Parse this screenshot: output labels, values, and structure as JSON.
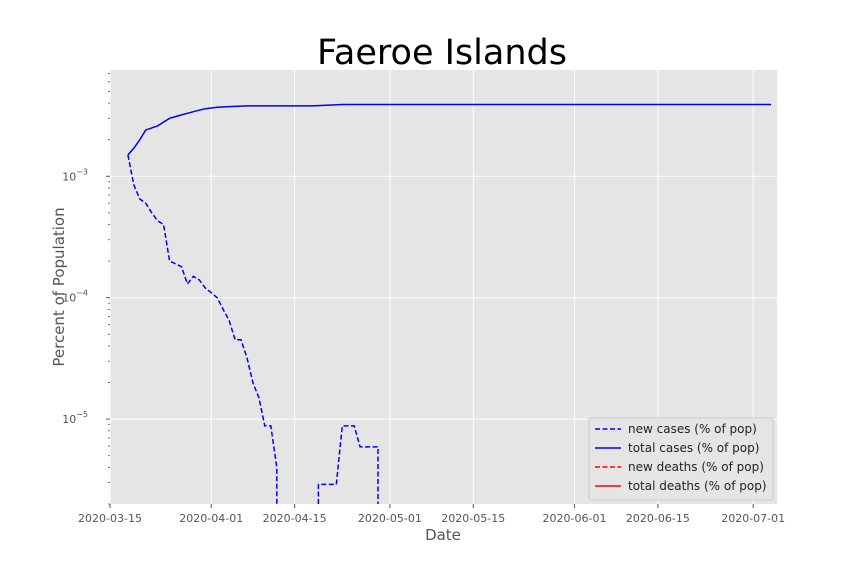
{
  "chart_data": {
    "type": "line",
    "title": "Faeroe Islands",
    "xlabel": "Date",
    "ylabel": "Percent of Population",
    "yscale": "log",
    "ylim": [
      2e-06,
      0.0075
    ],
    "xlim": [
      "2020-03-15",
      "2020-07-05"
    ],
    "grid": true,
    "legend_position": "lower-right",
    "x_ticks": [
      "2020-03-15",
      "2020-04-01",
      "2020-04-15",
      "2020-05-01",
      "2020-05-15",
      "2020-06-01",
      "2020-06-15",
      "2020-07-01"
    ],
    "y_ticks": [
      {
        "value": 0.001,
        "base": "10",
        "exp": "−3"
      },
      {
        "value": 0.0001,
        "base": "10",
        "exp": "−4"
      },
      {
        "value": 1e-05,
        "base": "10",
        "exp": "−5"
      }
    ],
    "colors": {
      "cases": "#0000ff",
      "deaths": "#ff0000",
      "background": "#e5e5e5",
      "grid": "#ffffff"
    },
    "series": [
      {
        "name": "new cases (% of pop)",
        "color": "#0000ff",
        "style": "dashed",
        "points": [
          [
            "2020-03-18",
            0.0015
          ],
          [
            "2020-03-19",
            0.00085
          ],
          [
            "2020-03-20",
            0.00065
          ],
          [
            "2020-03-21",
            0.0006
          ],
          [
            "2020-03-22",
            0.0005
          ],
          [
            "2020-03-23",
            0.00043
          ],
          [
            "2020-03-24",
            0.0004
          ],
          [
            "2020-03-25",
            0.0002
          ],
          [
            "2020-03-26",
            0.00019
          ],
          [
            "2020-03-27",
            0.00018
          ],
          [
            "2020-03-28",
            0.00013
          ],
          [
            "2020-03-29",
            0.00015
          ],
          [
            "2020-03-30",
            0.00014
          ],
          [
            "2020-03-31",
            0.00012
          ],
          [
            "2020-04-01",
            0.00011
          ],
          [
            "2020-04-02",
            0.0001
          ],
          [
            "2020-04-03",
            8e-05
          ],
          [
            "2020-04-04",
            6.5e-05
          ],
          [
            "2020-04-05",
            4.5e-05
          ],
          [
            "2020-04-06",
            4.5e-05
          ],
          [
            "2020-04-07",
            3.2e-05
          ],
          [
            "2020-04-08",
            2e-05
          ],
          [
            "2020-04-09",
            1.5e-05
          ],
          [
            "2020-04-10",
            8.8e-06
          ],
          [
            "2020-04-11",
            8.8e-06
          ],
          [
            "2020-04-12",
            4e-06
          ],
          [
            "2020-04-12",
            2e-06
          ]
        ]
      },
      {
        "name": "new cases (% of pop) segment 2",
        "color": "#0000ff",
        "style": "dashed",
        "points": [
          [
            "2020-04-19",
            2e-06
          ],
          [
            "2020-04-19",
            2.9e-06
          ],
          [
            "2020-04-21",
            2.9e-06
          ],
          [
            "2020-04-22",
            2.9e-06
          ],
          [
            "2020-04-23",
            8.8e-06
          ],
          [
            "2020-04-25",
            8.8e-06
          ],
          [
            "2020-04-26",
            5.9e-06
          ],
          [
            "2020-04-28",
            5.9e-06
          ],
          [
            "2020-04-29",
            5.9e-06
          ],
          [
            "2020-04-29",
            2e-06
          ]
        ]
      },
      {
        "name": "total cases (% of pop)",
        "color": "#0000ff",
        "style": "solid",
        "points": [
          [
            "2020-03-18",
            0.0015
          ],
          [
            "2020-03-19",
            0.0017
          ],
          [
            "2020-03-20",
            0.002
          ],
          [
            "2020-03-21",
            0.0024
          ],
          [
            "2020-03-22",
            0.0025
          ],
          [
            "2020-03-23",
            0.0026
          ],
          [
            "2020-03-24",
            0.0028
          ],
          [
            "2020-03-25",
            0.003
          ],
          [
            "2020-03-26",
            0.0031
          ],
          [
            "2020-03-27",
            0.0032
          ],
          [
            "2020-03-28",
            0.0033
          ],
          [
            "2020-03-29",
            0.0034
          ],
          [
            "2020-03-30",
            0.0035
          ],
          [
            "2020-03-31",
            0.0036
          ],
          [
            "2020-04-02",
            0.0037
          ],
          [
            "2020-04-04",
            0.00375
          ],
          [
            "2020-04-07",
            0.0038
          ],
          [
            "2020-04-18",
            0.0038
          ],
          [
            "2020-04-23",
            0.0039
          ],
          [
            "2020-07-04",
            0.0039
          ]
        ]
      }
    ],
    "legend": [
      {
        "label": "new cases (% of pop)",
        "color": "#0000ff",
        "style": "dashed"
      },
      {
        "label": "total cases (% of pop)",
        "color": "#0000ff",
        "style": "solid"
      },
      {
        "label": "new deaths (% of pop)",
        "color": "#ff0000",
        "style": "dashed"
      },
      {
        "label": "total deaths (% of pop)",
        "color": "#ff0000",
        "style": "solid"
      }
    ]
  }
}
